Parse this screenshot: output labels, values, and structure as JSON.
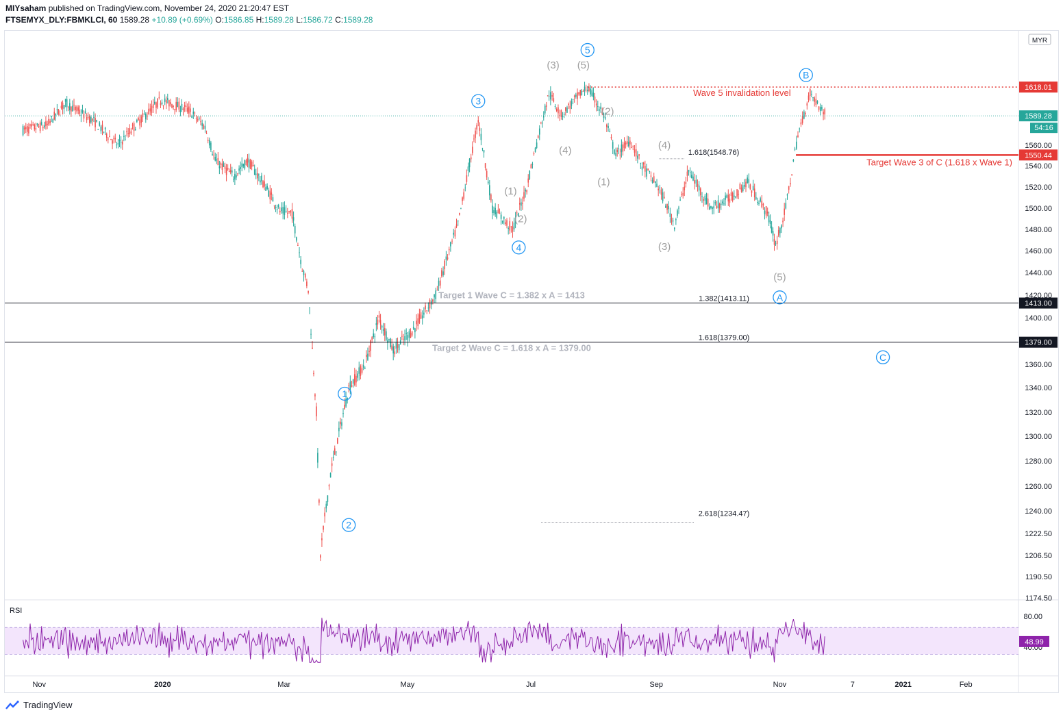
{
  "header": {
    "publisher": "MIYsaham",
    "published_text": "published on TradingView.com, November 24, 2020 21:20:47 EST",
    "symbol": "FTSEMYX_DLY:FBMKLCI, 60",
    "last": "1589.28",
    "change": "+10.89 (+0.69%)",
    "open_label": "O:",
    "open": "1586.85",
    "high_label": "H:",
    "high": "1589.28",
    "low_label": "L:",
    "low": "1586.72",
    "close_label": "C:",
    "close": "1589.28"
  },
  "footer": {
    "brand": "TradingView"
  },
  "colors": {
    "up": "#26a69a",
    "down": "#ef5350",
    "wave": "#2196f3",
    "subwave": "#9e9e9e",
    "invalidation": "#e53935",
    "rsi_line": "#8e24aa",
    "rsi_band": "#f3e5fc",
    "price_label": "#26a69a"
  },
  "chart_data": {
    "type": "candlestick",
    "currency": "MYR",
    "y_axis_ticks": [
      1174.5,
      1190.5,
      1206.5,
      1222.5,
      1240.0,
      1260.0,
      1280.0,
      1300.0,
      1320.0,
      1340.0,
      1360.0,
      1400.0,
      1420.0,
      1440.0,
      1460.0,
      1480.0,
      1500.0,
      1520.0,
      1540.0,
      1560.0
    ],
    "x_axis_labels": [
      "Nov",
      "2020",
      "Mar",
      "May",
      "Jul",
      "Sep",
      "Nov",
      "7",
      "2021",
      "Feb"
    ],
    "price_path": [
      [
        "2019-10-24",
        1575
      ],
      [
        "2019-11-05",
        1580
      ],
      [
        "2019-11-14",
        1602
      ],
      [
        "2019-11-28",
        1584
      ],
      [
        "2019-12-10",
        1560
      ],
      [
        "2019-12-20",
        1583
      ],
      [
        "2019-12-31",
        1605
      ],
      [
        "2020-01-14",
        1595
      ],
      [
        "2020-01-22",
        1578
      ],
      [
        "2020-01-27",
        1545
      ],
      [
        "2020-02-05",
        1530
      ],
      [
        "2020-02-12",
        1545
      ],
      [
        "2020-02-21",
        1520
      ],
      [
        "2020-02-28",
        1497
      ],
      [
        "2020-03-05",
        1495
      ],
      [
        "2020-03-10",
        1445
      ],
      [
        "2020-03-13",
        1425
      ],
      [
        "2020-03-17",
        1320
      ],
      [
        "2020-03-19",
        1207
      ],
      [
        "2020-03-24",
        1270
      ],
      [
        "2020-04-02",
        1340
      ],
      [
        "2020-04-10",
        1360
      ],
      [
        "2020-04-17",
        1400
      ],
      [
        "2020-04-24",
        1372
      ],
      [
        "2020-05-04",
        1390
      ],
      [
        "2020-05-15",
        1420
      ],
      [
        "2020-05-26",
        1485
      ],
      [
        "2020-06-05",
        1585
      ],
      [
        "2020-06-12",
        1500
      ],
      [
        "2020-06-22",
        1480
      ],
      [
        "2020-06-29",
        1520
      ],
      [
        "2020-07-06",
        1580
      ],
      [
        "2020-07-10",
        1612
      ],
      [
        "2020-07-16",
        1590
      ],
      [
        "2020-07-24",
        1608
      ],
      [
        "2020-07-29",
        1618
      ],
      [
        "2020-08-06",
        1590
      ],
      [
        "2020-08-12",
        1550
      ],
      [
        "2020-08-19",
        1565
      ],
      [
        "2020-08-25",
        1540
      ],
      [
        "2020-09-02",
        1520
      ],
      [
        "2020-09-10",
        1485
      ],
      [
        "2020-09-17",
        1535
      ],
      [
        "2020-09-28",
        1500
      ],
      [
        "2020-10-08",
        1510
      ],
      [
        "2020-10-16",
        1525
      ],
      [
        "2020-10-26",
        1495
      ],
      [
        "2020-10-30",
        1465
      ],
      [
        "2020-11-04",
        1500
      ],
      [
        "2020-11-10",
        1570
      ],
      [
        "2020-11-16",
        1612
      ],
      [
        "2020-11-24",
        1589
      ]
    ],
    "horizontal_lines": [
      {
        "price": 1618.01,
        "label": "1618.01",
        "text": "Wave 5 invalidation level",
        "style": "dotted",
        "color": "#e53935"
      },
      {
        "price": 1589.28,
        "label": "1589.28",
        "sub_label": "54:16",
        "style": "dotted-thin",
        "color": "#26a69a"
      },
      {
        "price": 1550.44,
        "label": "1550.44",
        "text": "Target Wave 3 of C (1.618 x Wave 1)",
        "style": "solid",
        "color": "#e53935"
      },
      {
        "price": 1413.0,
        "label": "1413.00",
        "text": "Target 1 Wave C = 1.382 x A = 1413",
        "style": "solid",
        "color": "#131722"
      },
      {
        "price": 1379.0,
        "label": "1379.00",
        "text": "Target 2 Wave C = 1.618 x A = 1379.00",
        "style": "solid",
        "color": "#131722"
      }
    ],
    "fib_labels": [
      {
        "text": "1.618(1548.76)",
        "price": 1548.76
      },
      {
        "text": "1.382(1413.11)",
        "price": 1413.11
      },
      {
        "text": "1.618(1379.00)",
        "price": 1379.0
      },
      {
        "text": "2.618(1234.47)",
        "price": 1234.47
      }
    ],
    "wave_labels": [
      {
        "text": "1",
        "date": "2020-03-31",
        "price": 1335,
        "circle": true
      },
      {
        "text": "2",
        "date": "2020-04-02",
        "price": 1229,
        "circle": true
      },
      {
        "text": "3",
        "date": "2020-06-05",
        "price": 1604,
        "circle": true
      },
      {
        "text": "4",
        "date": "2020-06-25",
        "price": 1463,
        "circle": true
      },
      {
        "text": "5",
        "date": "2020-07-29",
        "price": 1655,
        "circle": true
      },
      {
        "text": "A",
        "date": "2020-11-01",
        "price": 1418,
        "circle": true
      },
      {
        "text": "B",
        "date": "2020-11-14",
        "price": 1630,
        "circle": true
      },
      {
        "text": "C",
        "date": "2020-12-22",
        "price": 1366,
        "circle": true
      }
    ],
    "subwave_labels": [
      {
        "text": "(3)",
        "date": "2020-07-12",
        "price": 1640
      },
      {
        "text": "(5)",
        "date": "2020-07-27",
        "price": 1640
      },
      {
        "text": "(2)",
        "date": "2020-08-08",
        "price": 1594
      },
      {
        "text": "(4)",
        "date": "2020-07-18",
        "price": 1555
      },
      {
        "text": "(1)",
        "date": "2020-08-06",
        "price": 1525
      },
      {
        "text": "(4)",
        "date": "2020-09-05",
        "price": 1560
      },
      {
        "text": "(1)",
        "date": "2020-06-21",
        "price": 1516
      },
      {
        "text": "(2)",
        "date": "2020-06-26",
        "price": 1490
      },
      {
        "text": "(3)",
        "date": "2020-09-05",
        "price": 1464
      },
      {
        "text": "(5)",
        "date": "2020-11-01",
        "price": 1436
      }
    ],
    "rsi": {
      "label": "RSI",
      "value": "48.99",
      "ticks": [
        "80.00",
        "40.00"
      ],
      "band": [
        30,
        70
      ]
    }
  }
}
